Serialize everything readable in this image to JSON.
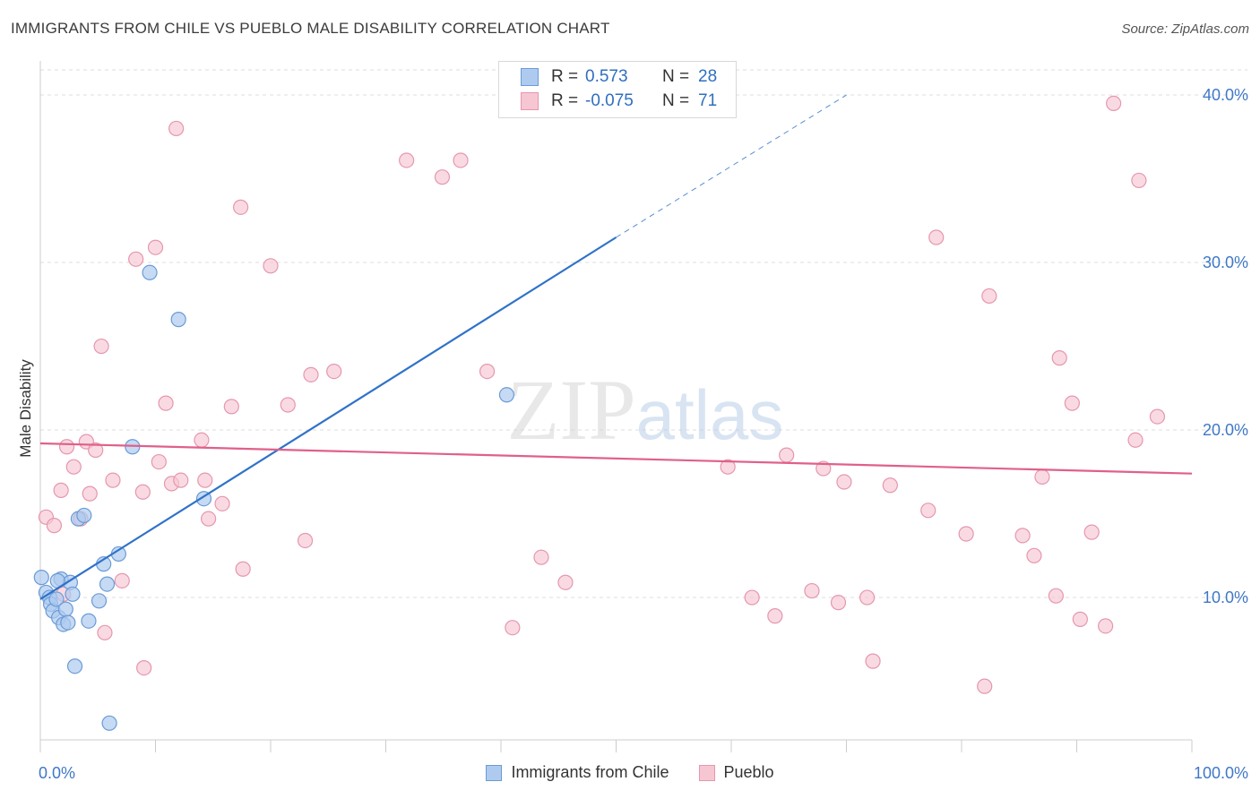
{
  "title": "IMMIGRANTS FROM CHILE VS PUEBLO MALE DISABILITY CORRELATION CHART",
  "source": "Source: ZipAtlas.com",
  "watermark": "ZIPatlas",
  "colors": {
    "blue_fill": "#aecbef",
    "blue_stroke": "#6a9bd6",
    "blue_line": "#2f72c9",
    "pink_fill": "#f7c6d3",
    "pink_stroke": "#e597ae",
    "pink_line": "#e0608a",
    "axis_text": "#3f78c6",
    "grid": "#dddddd"
  },
  "stats": {
    "r_label": "R =",
    "n_label": "N =",
    "rows": [
      {
        "series": "Immigrants from Chile",
        "r": "0.573",
        "n": "28"
      },
      {
        "series": "Pueblo",
        "r": "-0.075",
        "n": "71"
      }
    ]
  },
  "chart_data": {
    "type": "scatter",
    "title": "IMMIGRANTS FROM CHILE VS PUEBLO MALE DISABILITY CORRELATION CHART",
    "xlabel": "",
    "ylabel": "Male Disability",
    "xlim": [
      0,
      100
    ],
    "ylim": [
      1.5,
      41.5
    ],
    "x_tick_labels": [
      "0.0%",
      "100.0%"
    ],
    "y_ticks": [
      10,
      20,
      30,
      40
    ],
    "y_tick_labels": [
      "10.0%",
      "20.0%",
      "30.0%",
      "40.0%"
    ],
    "grid": true,
    "legend_position": "bottom",
    "series": [
      {
        "name": "Immigrants from Chile",
        "trend": {
          "x0": 0,
          "y0": 9.9,
          "x1": 50,
          "y1": 31.5,
          "dashed_to_x": 70,
          "dashed_to_y": 40
        },
        "points": [
          [
            0.1,
            11.2
          ],
          [
            0.5,
            10.3
          ],
          [
            0.8,
            10.0
          ],
          [
            0.9,
            9.6
          ],
          [
            1.1,
            9.2
          ],
          [
            1.4,
            9.9
          ],
          [
            1.6,
            8.8
          ],
          [
            1.8,
            11.1
          ],
          [
            2.0,
            8.4
          ],
          [
            2.2,
            9.3
          ],
          [
            2.4,
            8.5
          ],
          [
            2.6,
            10.9
          ],
          [
            2.8,
            10.2
          ],
          [
            3.0,
            5.9
          ],
          [
            3.3,
            14.7
          ],
          [
            3.8,
            14.9
          ],
          [
            4.2,
            8.6
          ],
          [
            5.1,
            9.8
          ],
          [
            5.5,
            12.0
          ],
          [
            5.8,
            10.8
          ],
          [
            6.0,
            2.5
          ],
          [
            6.8,
            12.6
          ],
          [
            8.0,
            19.0
          ],
          [
            9.5,
            29.4
          ],
          [
            12.0,
            26.6
          ],
          [
            14.2,
            15.9
          ],
          [
            40.5,
            22.1
          ],
          [
            1.5,
            11.0
          ]
        ]
      },
      {
        "name": "Pueblo",
        "trend": {
          "x0": 0,
          "y0": 19.2,
          "x1": 100,
          "y1": 17.4
        },
        "points": [
          [
            0.5,
            14.8
          ],
          [
            1.2,
            14.3
          ],
          [
            1.8,
            16.4
          ],
          [
            2.3,
            19.0
          ],
          [
            2.9,
            17.8
          ],
          [
            3.5,
            14.7
          ],
          [
            4.0,
            19.3
          ],
          [
            4.3,
            16.2
          ],
          [
            4.8,
            18.8
          ],
          [
            5.3,
            25.0
          ],
          [
            5.6,
            7.9
          ],
          [
            6.3,
            17.0
          ],
          [
            7.1,
            11.0
          ],
          [
            8.3,
            30.2
          ],
          [
            8.9,
            16.3
          ],
          [
            9.0,
            5.8
          ],
          [
            10.0,
            30.9
          ],
          [
            10.3,
            18.1
          ],
          [
            10.9,
            21.6
          ],
          [
            11.4,
            16.8
          ],
          [
            11.8,
            38.0
          ],
          [
            12.2,
            17.0
          ],
          [
            14.0,
            19.4
          ],
          [
            14.3,
            17.0
          ],
          [
            14.6,
            14.7
          ],
          [
            15.8,
            15.6
          ],
          [
            16.6,
            21.4
          ],
          [
            17.4,
            33.3
          ],
          [
            17.6,
            11.7
          ],
          [
            20.0,
            29.8
          ],
          [
            21.5,
            21.5
          ],
          [
            23.0,
            13.4
          ],
          [
            23.5,
            23.3
          ],
          [
            25.5,
            23.5
          ],
          [
            31.8,
            36.1
          ],
          [
            34.9,
            35.1
          ],
          [
            36.5,
            36.1
          ],
          [
            38.8,
            23.5
          ],
          [
            41.0,
            8.2
          ],
          [
            43.5,
            12.4
          ],
          [
            45.6,
            10.9
          ],
          [
            59.7,
            17.8
          ],
          [
            61.8,
            10.0
          ],
          [
            63.8,
            8.9
          ],
          [
            64.8,
            18.5
          ],
          [
            67.0,
            10.4
          ],
          [
            68.0,
            17.7
          ],
          [
            69.3,
            9.7
          ],
          [
            69.8,
            16.9
          ],
          [
            71.8,
            10.0
          ],
          [
            72.3,
            6.2
          ],
          [
            73.8,
            16.7
          ],
          [
            77.1,
            15.2
          ],
          [
            77.8,
            31.5
          ],
          [
            80.4,
            13.8
          ],
          [
            82.0,
            4.7
          ],
          [
            82.4,
            28.0
          ],
          [
            85.3,
            13.7
          ],
          [
            86.3,
            12.5
          ],
          [
            87.0,
            17.2
          ],
          [
            88.2,
            10.1
          ],
          [
            88.5,
            24.3
          ],
          [
            89.6,
            21.6
          ],
          [
            90.3,
            8.7
          ],
          [
            91.3,
            13.9
          ],
          [
            92.5,
            8.3
          ],
          [
            93.2,
            39.5
          ],
          [
            95.1,
            19.4
          ],
          [
            95.4,
            34.9
          ],
          [
            97.0,
            20.8
          ],
          [
            2.0,
            10.2
          ]
        ]
      }
    ]
  }
}
